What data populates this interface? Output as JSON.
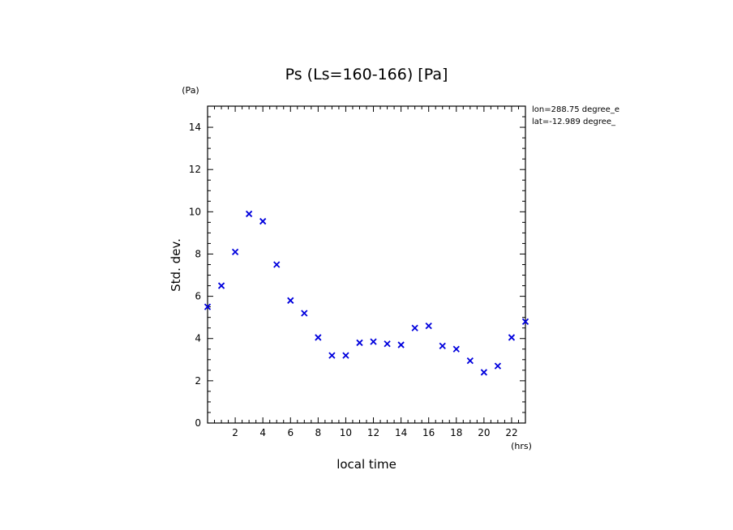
{
  "chart_data": {
    "type": "scatter",
    "title": "Ps (Ls=160-166) [Pa]",
    "xlabel": "local time",
    "xunit": "(hrs)",
    "ylabel": "Std. dev.",
    "yunit": "(Pa)",
    "xlim": [
      0,
      23
    ],
    "ylim": [
      0,
      15
    ],
    "x_ticks": [
      2,
      4,
      6,
      8,
      10,
      12,
      14,
      16,
      18,
      20,
      22
    ],
    "y_ticks": [
      0,
      2,
      4,
      6,
      8,
      10,
      12,
      14
    ],
    "marker": "x",
    "marker_color": "#0000dd",
    "grid": false,
    "annotations": [
      "lon=288.75 degree_e",
      "lat=-12.989 degree_"
    ],
    "series": [
      {
        "x": [
          0,
          1,
          2,
          3,
          4,
          5,
          6,
          7,
          8,
          9,
          10,
          11,
          12,
          13,
          14,
          15,
          16,
          17,
          18,
          19,
          20,
          21,
          22,
          23
        ],
        "y": [
          5.5,
          6.5,
          8.1,
          9.9,
          9.55,
          7.5,
          5.8,
          5.2,
          4.05,
          3.2,
          3.2,
          3.8,
          3.85,
          3.75,
          3.7,
          4.5,
          4.6,
          3.65,
          3.5,
          2.95,
          2.4,
          2.7,
          4.05,
          4.8
        ]
      }
    ]
  }
}
